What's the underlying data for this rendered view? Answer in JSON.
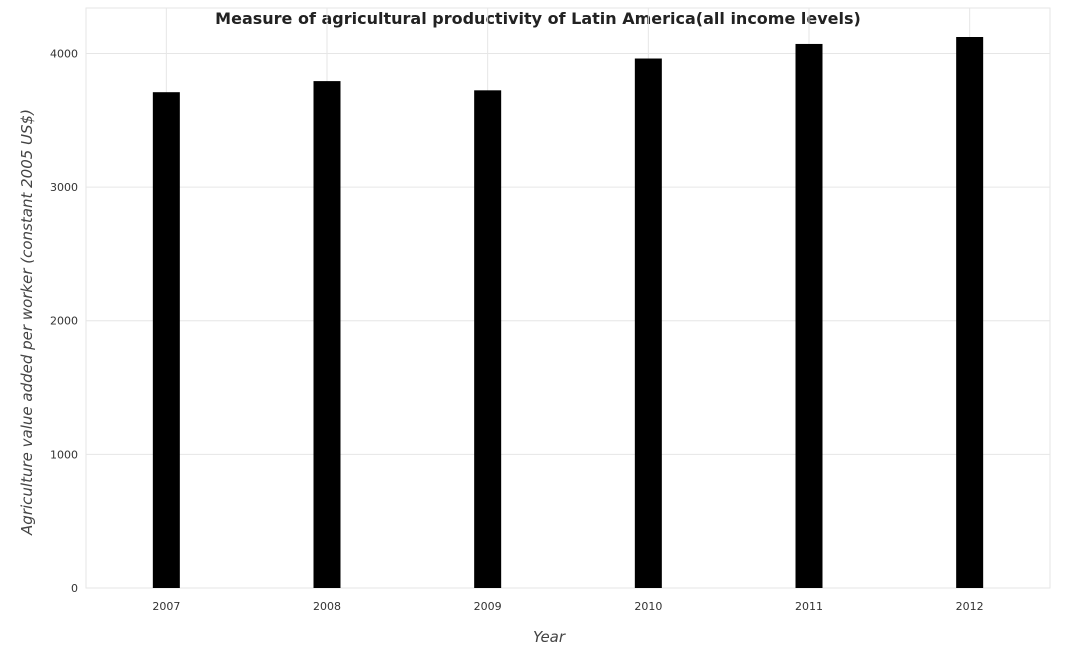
{
  "chart_data": {
    "type": "bar",
    "title": "Measure of agricultural productivity of Latin America(all income levels)",
    "xlabel": "Year",
    "ylabel": "Agriculture value added per worker (constant 2005 US$)",
    "categories": [
      "2007",
      "2008",
      "2009",
      "2010",
      "2011",
      "2012"
    ],
    "values": [
      3710,
      3793,
      3724,
      3962,
      4071,
      4123
    ],
    "ylim": [
      0,
      4340
    ],
    "yticks": [
      0,
      1000,
      2000,
      3000,
      4000
    ],
    "grid": true,
    "bar_color": "#000000"
  }
}
